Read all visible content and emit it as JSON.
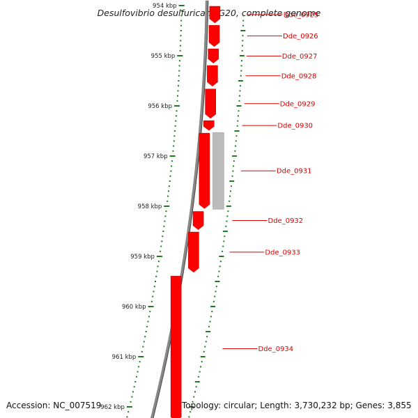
{
  "title": "Desulfovibrio desulfuricans G20, complete genome",
  "accession": "Accession: NC_007519",
  "topology": "Topology: circular; Length: 3,730,232 bp; Genes: 3,855",
  "scale": {
    "unit": "kbp",
    "labels": [
      "954 kbp",
      "955 kbp",
      "956 kbp",
      "957 kbp",
      "958 kbp",
      "959 kbp",
      "960 kbp",
      "961 kbp",
      "962 kbp"
    ]
  },
  "colors": {
    "gene": "#ff0000",
    "gene_shade": "#c40000",
    "pseudo": "#bbbbbb",
    "backbone": "#888888",
    "ruler": "#1f7a1f",
    "label": "#dd0000"
  },
  "genes": [
    {
      "id": "Dde_0925",
      "start": 954.0,
      "end": 954.36
    },
    {
      "id": "Dde_0926",
      "start": 954.38,
      "end": 954.83
    },
    {
      "id": "Dde_0927",
      "start": 954.85,
      "end": 955.16
    },
    {
      "id": "Dde_0928",
      "start": 955.18,
      "end": 955.62
    },
    {
      "id": "Dde_0929",
      "start": 955.65,
      "end": 956.26
    },
    {
      "id": "Dde_0930",
      "start": 956.28,
      "end": 956.5
    },
    {
      "id": "Dde_0931",
      "start": 956.53,
      "end": 958.06
    },
    {
      "id": "Dde_0932",
      "start": 958.09,
      "end": 958.48
    },
    {
      "id": "Dde_0933",
      "start": 958.5,
      "end": 959.33
    },
    {
      "id": "Dde_0934",
      "start": 959.38,
      "end": 962.3
    }
  ],
  "pseudo_feature": {
    "start": 956.53,
    "end": 958.06
  }
}
